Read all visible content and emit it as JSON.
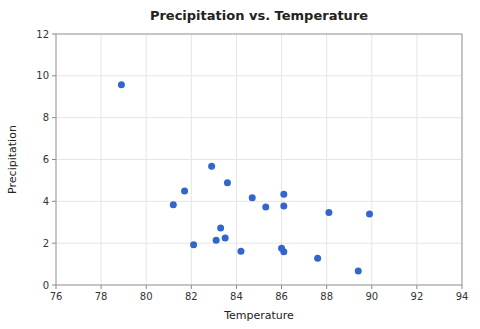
{
  "chart_data": {
    "type": "scatter",
    "title": "Precipitation vs. Temperature",
    "xlabel": "Temperature",
    "ylabel": "Precipitation",
    "x": [
      81.7,
      85.3,
      86,
      89.4,
      89.9,
      86.1,
      88.1,
      78.9,
      83.1,
      83.3,
      82.9,
      81.2,
      84.7,
      86.1,
      84.2,
      87.6,
      82.1,
      83.5,
      83.6,
      86.1
    ],
    "values": [
      4.49,
      3.73,
      1.76,
      0.67,
      3.39,
      1.59,
      3.47,
      9.57,
      2.14,
      2.73,
      5.68,
      3.84,
      4.17,
      4.34,
      1.61,
      1.28,
      1.92,
      2.25,
      4.89,
      3.78
    ],
    "color": "#3366cc",
    "xlim": [
      76,
      94
    ],
    "ylim": [
      0,
      12
    ],
    "xticks": [
      76,
      78,
      80,
      82,
      84,
      86,
      88,
      90,
      92,
      94
    ],
    "yticks": [
      0,
      2,
      4,
      6,
      8,
      10,
      12
    ],
    "grid": true
  }
}
